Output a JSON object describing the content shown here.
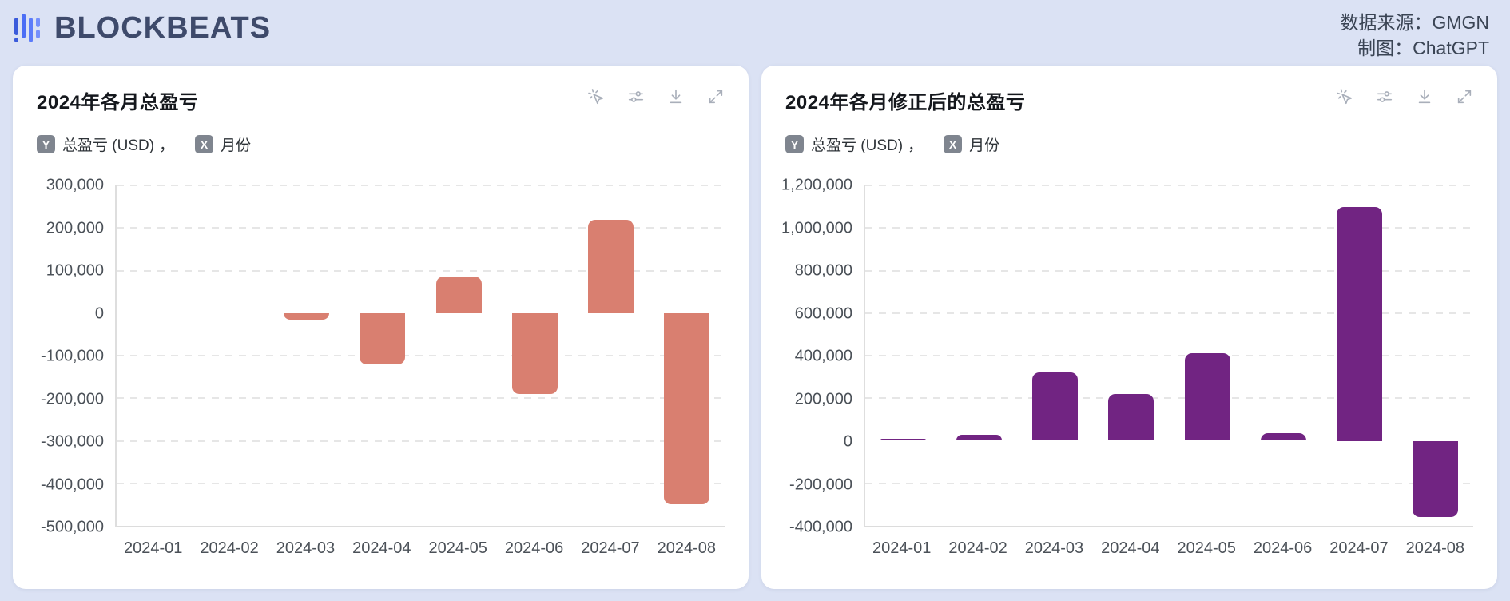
{
  "header": {
    "logo_text": "BLOCKBEATS",
    "source_line": "数据来源：GMGN",
    "credit_line": "制图：ChatGPT"
  },
  "toolbar_icons": [
    {
      "name": "pointer-click-icon"
    },
    {
      "name": "sliders-icon"
    },
    {
      "name": "download-icon"
    },
    {
      "name": "expand-icon"
    }
  ],
  "chart_data": [
    {
      "type": "bar",
      "title": "2024年各月总盈亏",
      "legend": {
        "y_badge": "Y",
        "y_label": "总盈亏 (USD)",
        "separator": "，",
        "x_badge": "X",
        "x_label": "月份"
      },
      "xlabel": "月份",
      "ylabel": "总盈亏 (USD)",
      "categories": [
        "2024-01",
        "2024-02",
        "2024-03",
        "2024-04",
        "2024-05",
        "2024-06",
        "2024-07",
        "2024-08"
      ],
      "values": [
        0,
        0,
        -15000,
        -120000,
        85000,
        -190000,
        220000,
        -450000
      ],
      "ylim": [
        -500000,
        300000
      ],
      "y_step": 100000,
      "bar_color": "#D97F70",
      "grid": "dashed-horizontal",
      "legend_position": "top-left"
    },
    {
      "type": "bar",
      "title": "2024年各月修正后的总盈亏",
      "legend": {
        "y_badge": "Y",
        "y_label": "总盈亏 (USD)",
        "separator": "，",
        "x_badge": "X",
        "x_label": "月份"
      },
      "xlabel": "月份",
      "ylabel": "总盈亏 (USD)",
      "categories": [
        "2024-01",
        "2024-02",
        "2024-03",
        "2024-04",
        "2024-05",
        "2024-06",
        "2024-07",
        "2024-08"
      ],
      "values": [
        10000,
        30000,
        320000,
        220000,
        410000,
        35000,
        1100000,
        -360000
      ],
      "ylim": [
        -400000,
        1200000
      ],
      "y_step": 200000,
      "bar_color": "#712482",
      "grid": "dashed-horizontal",
      "legend_position": "top-left"
    }
  ],
  "colors": {
    "page_background": "#dbe2f4",
    "card_background": "#ffffff",
    "logo_navy": "#3e4a6b",
    "logo_blue": "#4c6ef5",
    "left_bar": "#D97F70",
    "right_bar": "#712482",
    "axis_text": "#4b5158",
    "gridline": "#e6e6e6"
  }
}
